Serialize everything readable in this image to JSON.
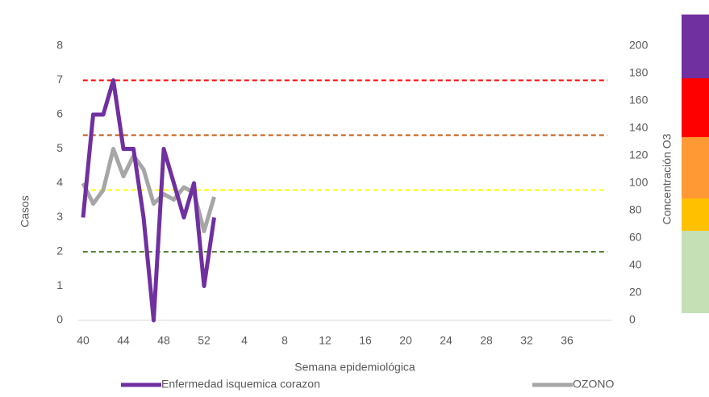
{
  "chart_data": {
    "type": "line",
    "xlabel": "Semana epidemiológica",
    "ylabel": "Casos",
    "y2label": "Concentración O3",
    "categories": [
      40,
      null,
      null,
      null,
      44,
      null,
      null,
      null,
      48,
      null,
      null,
      null,
      52,
      null,
      null,
      null,
      4,
      null,
      null,
      null,
      8,
      null,
      null,
      null,
      12,
      null,
      null,
      null,
      16,
      null,
      null,
      null,
      20,
      null,
      null,
      null,
      24,
      null,
      null,
      null,
      28,
      null,
      null,
      null,
      32,
      null,
      null,
      null,
      36,
      null,
      null,
      null,
      null
    ],
    "series": [
      {
        "name": "Enfermedad isquemica corazon",
        "color": "#7030a0",
        "values": [
          3,
          6,
          6,
          7,
          5,
          5,
          3,
          0,
          5,
          4,
          3,
          4,
          1,
          3,
          null,
          null,
          null,
          null,
          null,
          null,
          null,
          null,
          null,
          null,
          null,
          null,
          null,
          null,
          null,
          null,
          null,
          null,
          null,
          null,
          null,
          null,
          null,
          null,
          null,
          null,
          null,
          null,
          null,
          null,
          null,
          null,
          null,
          null,
          null,
          null,
          null,
          null,
          null
        ]
      },
      {
        "name": "OZONO",
        "color": "#a6a6a6",
        "axis": "y2",
        "values": [
          100,
          85,
          95,
          125,
          105,
          120,
          110,
          85,
          92,
          88,
          97,
          93,
          65,
          90,
          null,
          null,
          null,
          null,
          null,
          null,
          null,
          null,
          null,
          null,
          null,
          null,
          null,
          null,
          null,
          null,
          null,
          null,
          null,
          null,
          null,
          null,
          null,
          null,
          null,
          null,
          null,
          null,
          null,
          null,
          null,
          null,
          null,
          null,
          null,
          null,
          null,
          null,
          null
        ]
      }
    ],
    "ylim": [
      0,
      8
    ],
    "yticks": [
      0,
      1,
      2,
      3,
      4,
      5,
      6,
      7,
      8
    ],
    "y2lim": [
      0,
      200
    ],
    "y2ticks": [
      0,
      20,
      40,
      60,
      80,
      100,
      120,
      140,
      160,
      180,
      200
    ],
    "thresholds": [
      {
        "value": 175,
        "color": "#ff0000"
      },
      {
        "value": 135,
        "color": "#c55a11"
      },
      {
        "value": 95,
        "color": "#ffff00"
      },
      {
        "value": 50,
        "color": "#548235"
      }
    ],
    "legend": "bottom"
  }
}
